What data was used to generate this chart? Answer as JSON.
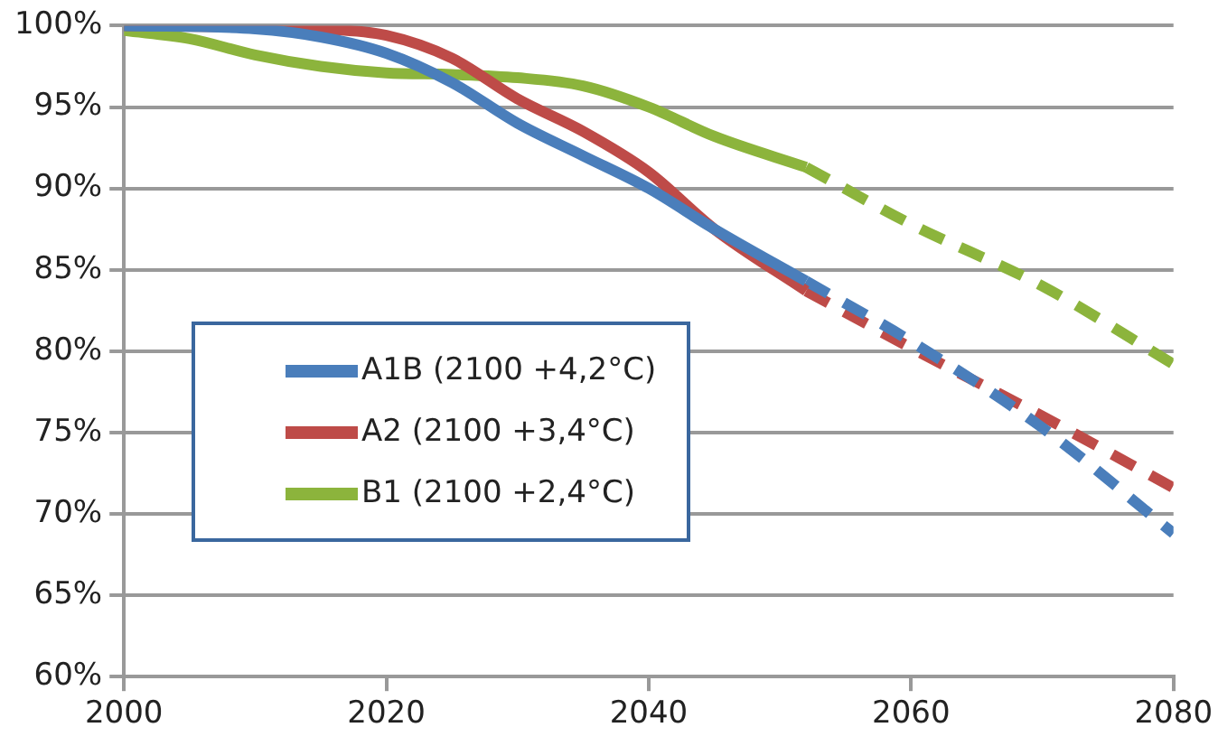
{
  "chart_data": {
    "type": "line",
    "legend": "left",
    "grid": "y",
    "marker": "none",
    "xlim": [
      2000,
      2080
    ],
    "xticks": [
      2000,
      2020,
      2040,
      2060,
      2080
    ],
    "ylim": [
      60,
      100
    ],
    "yticks": [
      {
        "value": 60,
        "label": "60%"
      },
      {
        "value": 65,
        "label": "65%"
      },
      {
        "value": 70,
        "label": "70%"
      },
      {
        "value": 75,
        "label": "75%"
      },
      {
        "value": 80,
        "label": "80%"
      },
      {
        "value": 85,
        "label": "85%"
      },
      {
        "value": 90,
        "label": "90%"
      },
      {
        "value": 95,
        "label": "95%"
      },
      {
        "value": 100,
        "label": "100%"
      }
    ],
    "series": [
      {
        "name": "A1B (2100 +4,2°C)",
        "color": "#4a7ebb",
        "line_style": "solid",
        "x": [
          2000,
          2010,
          2015,
          2020,
          2025,
          2030,
          2035,
          2040,
          2045,
          2052
        ],
        "values": [
          100,
          99.8,
          99.3,
          98.3,
          96.5,
          94,
          92,
          90,
          87.5,
          84.3
        ]
      },
      {
        "name": "A2 (2100 +3,4°C)",
        "color": "#be4b48",
        "line_style": "solid",
        "x": [
          2000,
          2010,
          2015,
          2020,
          2025,
          2030,
          2035,
          2040,
          2045,
          2052
        ],
        "values": [
          100,
          99.9,
          99.8,
          99.4,
          98,
          95.5,
          93.5,
          91,
          87.5,
          83.7
        ]
      },
      {
        "name": "B1 (2100 +2,4°C)",
        "color": "#8cb43c",
        "line_style": "solid",
        "x": [
          2000,
          2005,
          2010,
          2015,
          2020,
          2025,
          2030,
          2035,
          2040,
          2045,
          2052
        ],
        "values": [
          99.7,
          99.2,
          98.2,
          97.5,
          97.1,
          97,
          96.8,
          96.3,
          95,
          93.2,
          91.3
        ]
      },
      {
        "color": "#4a7ebb",
        "line_style": "dashed",
        "x": [
          2052,
          2060,
          2070,
          2080
        ],
        "values": [
          84.3,
          80.6,
          75.3,
          68.8
        ]
      },
      {
        "color": "#be4b48",
        "line_style": "dashed",
        "x": [
          2052,
          2060,
          2070,
          2080
        ],
        "values": [
          83.7,
          80.2,
          76,
          71.6
        ]
      },
      {
        "color": "#8cb43c",
        "line_style": "dashed",
        "x": [
          2052,
          2060,
          2070,
          2080
        ],
        "values": [
          91.3,
          87.8,
          84,
          79.2
        ]
      }
    ]
  }
}
